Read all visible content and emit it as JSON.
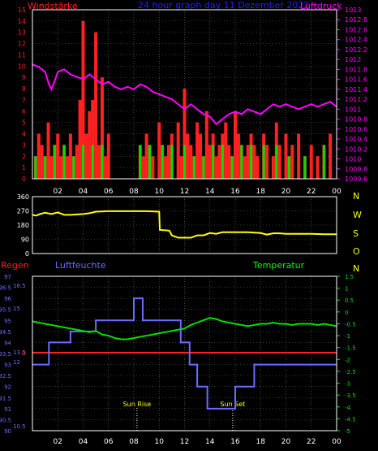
{
  "title": "24 hour graph day  11 Dezember 2022",
  "colors": {
    "red": "#ff2020",
    "green": "#00e000",
    "magenta": "#ff00ff",
    "yellow": "#ffff00",
    "blue": "#6c6cff",
    "grid": "#707070",
    "axis": "#ffffff",
    "title": "#2020ff",
    "temp_label": "#00ff00"
  },
  "x_ticks": [
    "02",
    "04",
    "06",
    "08",
    "10",
    "12",
    "14",
    "16",
    "18",
    "20",
    "22",
    "00"
  ],
  "wind_panel": {
    "left_label": "Windstärke",
    "right_label": "Luftdruck",
    "left_ticks": [
      "0",
      "1",
      "2",
      "3",
      "4",
      "5",
      "6",
      "7",
      "8",
      "9",
      "10",
      "11",
      "12",
      "13",
      "14",
      "15"
    ],
    "right_ticks": [
      "1009.6",
      "1009.8",
      "1010",
      "1010.2",
      "1010.4",
      "1010.6",
      "1010.8",
      "1011",
      "1011.2",
      "1011.4",
      "1011.6",
      "1011.8",
      "1012",
      "1012.2",
      "1012.4",
      "1012.6",
      "1012.8",
      "1013"
    ]
  },
  "direction_panel": {
    "left_ticks": [
      "0",
      "90",
      "180",
      "270",
      "360"
    ],
    "compass": [
      "N",
      "W",
      "S",
      "O",
      "N"
    ]
  },
  "climate_panel": {
    "label_rain": "Regen",
    "label_humidity": "Luftfeuchte",
    "label_temp": "Temperatur",
    "rain_ticks": [
      "0"
    ],
    "humidity_ticks": [
      "90",
      "90.5",
      "91",
      "91.5",
      "92",
      "92.5",
      "93",
      "93.5",
      "94",
      "94.5",
      "95",
      "95.5",
      "96",
      "96.5",
      "97"
    ],
    "rain_scale_ticks": [
      "10.5",
      "12",
      "13.5",
      "15",
      "16.5"
    ],
    "temp_ticks": [
      "-5",
      "-4.5",
      "-4",
      "-3.5",
      "-3",
      "-2.5",
      "-2",
      "-1.5",
      "-1",
      "-0.5",
      "0",
      "0.5",
      "1",
      "1.5"
    ],
    "sun_rise_label": "Sun Rise",
    "sun_set_label": "Sun Set"
  },
  "chart_data": [
    {
      "type": "line",
      "title": "24 hour graph day  11 Dezember 2022",
      "x_unit": "hour",
      "xlim": [
        0,
        24
      ],
      "series": [
        {
          "name": "Luftdruck",
          "color": "#ff00ff",
          "axis": "right",
          "ylim": [
            1009.6,
            1013.0
          ],
          "x": [
            0,
            0.5,
            1.0,
            1.3,
            1.5,
            1.8,
            2.0,
            2.5,
            3.0,
            3.5,
            4.0,
            4.5,
            5.0,
            5.5,
            6.0,
            6.5,
            7.0,
            7.5,
            8.0,
            8.5,
            9.0,
            9.5,
            10.0,
            10.5,
            11.0,
            11.5,
            12.0,
            12.5,
            13.0,
            13.5,
            14.0,
            14.5,
            15.0,
            15.5,
            16.0,
            16.5,
            17.0,
            17.5,
            18.0,
            18.5,
            19.0,
            19.5,
            20.0,
            20.5,
            21.0,
            21.5,
            22.0,
            22.5,
            23.0,
            23.5,
            24.0
          ],
          "values": [
            1011.9,
            1011.85,
            1011.75,
            1011.5,
            1011.4,
            1011.6,
            1011.75,
            1011.8,
            1011.7,
            1011.65,
            1011.6,
            1011.7,
            1011.6,
            1011.5,
            1011.55,
            1011.45,
            1011.4,
            1011.45,
            1011.4,
            1011.5,
            1011.45,
            1011.35,
            1011.3,
            1011.25,
            1011.2,
            1011.1,
            1011.0,
            1011.1,
            1011.0,
            1010.9,
            1010.85,
            1010.7,
            1010.8,
            1010.9,
            1010.95,
            1010.9,
            1011.0,
            1010.95,
            1010.9,
            1011.0,
            1011.1,
            1011.05,
            1011.1,
            1011.05,
            1011.0,
            1011.05,
            1011.1,
            1011.05,
            1011.1,
            1011.15,
            1011.05
          ]
        },
        {
          "name": "Windstärke",
          "type": "bar",
          "axis": "left",
          "ylim": [
            0,
            15
          ],
          "description_of_colors": "",
          "x": [
            0.25,
            0.5,
            0.75,
            1.0,
            1.25,
            1.5,
            1.75,
            2.0,
            2.25,
            2.5,
            2.75,
            3.0,
            3.25,
            3.5,
            3.75,
            4.0,
            4.25,
            4.5,
            4.75,
            5.0,
            5.25,
            5.5,
            5.75,
            6.0,
            8.5,
            8.75,
            9.0,
            9.25,
            9.5,
            10.0,
            10.25,
            10.5,
            10.75,
            11.0,
            11.5,
            11.75,
            12.0,
            12.25,
            12.5,
            12.75,
            13.0,
            13.25,
            13.5,
            13.75,
            14.0,
            14.25,
            14.5,
            14.75,
            15.0,
            15.25,
            15.5,
            15.75,
            16.0,
            16.25,
            16.5,
            16.75,
            17.0,
            17.25,
            17.5,
            17.75,
            18.25,
            18.5,
            19.0,
            19.25,
            19.5,
            20.0,
            20.25,
            20.5,
            21.0,
            21.5,
            22.0,
            22.5,
            23.0,
            23.5
          ],
          "values": [
            2,
            4,
            3,
            2,
            5,
            2,
            3,
            4,
            2,
            3,
            2,
            4,
            2,
            3,
            7,
            14,
            4,
            6,
            7,
            13,
            3,
            9,
            2,
            4,
            3,
            2,
            4,
            3,
            2,
            5,
            3,
            2,
            3,
            4,
            5,
            2,
            8,
            4,
            3,
            2,
            5,
            4,
            2,
            6,
            3,
            4,
            2,
            3,
            4,
            5,
            3,
            2,
            6,
            4,
            3,
            2,
            3,
            4,
            3,
            2,
            4,
            3,
            2,
            5,
            3,
            4,
            2,
            3,
            4,
            2,
            3,
            2,
            3,
            4
          ]
        }
      ]
    },
    {
      "type": "line",
      "x_unit": "hour",
      "xlim": [
        0,
        24
      ],
      "ylim": [
        0,
        360
      ],
      "series": [
        {
          "color": "#ffff00",
          "x": [
            0,
            0.3,
            0.6,
            1.0,
            1.5,
            2.0,
            2.5,
            3.0,
            4.0,
            4.5,
            5.0,
            6.0,
            7.0,
            8.0,
            9.0,
            10.0,
            10.05,
            10.8,
            11.0,
            11.5,
            12.0,
            12.5,
            13.0,
            13.5,
            14.0,
            14.5,
            15.0,
            16.0,
            17.0,
            18.0,
            18.5,
            19.0,
            19.5,
            20.0,
            20.5,
            21.0,
            22.0,
            23.0,
            24.0
          ],
          "values": [
            245,
            240,
            250,
            258,
            250,
            260,
            245,
            245,
            250,
            255,
            265,
            268,
            268,
            268,
            268,
            265,
            150,
            145,
            115,
            100,
            100,
            100,
            115,
            115,
            130,
            125,
            135,
            135,
            135,
            130,
            120,
            128,
            128,
            125,
            125,
            125,
            125,
            122,
            122
          ]
        }
      ]
    },
    {
      "type": "line",
      "x_unit": "hour",
      "xlim": [
        0,
        24
      ],
      "series": [
        {
          "name": "Luftfeuchte",
          "color": "#6c6cff",
          "axis": "left",
          "ylim": [
            90,
            97
          ],
          "x": [
            0,
            1.3,
            1.3,
            3.0,
            3.0,
            5.0,
            5.0,
            8.0,
            8.0,
            8.7,
            8.7,
            11.7,
            11.7,
            12.4,
            12.4,
            13.0,
            13.0,
            13.8,
            13.8,
            16.0,
            16.0,
            17.5,
            17.5,
            24.0
          ],
          "values": [
            93,
            93,
            94,
            94,
            94.5,
            94.5,
            95,
            95,
            96,
            96,
            95,
            95,
            94,
            94,
            93,
            93,
            92,
            92,
            91,
            91,
            92,
            92,
            93,
            93
          ]
        },
        {
          "name": "Temperatur",
          "color": "#00e000",
          "axis": "right",
          "ylim": [
            -5,
            1.5
          ],
          "x": [
            0,
            0.5,
            1.0,
            1.5,
            2.0,
            2.5,
            3.0,
            3.5,
            4.0,
            4.5,
            5.0,
            5.5,
            6.0,
            6.5,
            7.0,
            7.5,
            8.0,
            8.5,
            9.0,
            9.5,
            10.0,
            10.5,
            11.0,
            11.5,
            12.0,
            12.5,
            13.0,
            13.5,
            14.0,
            14.5,
            15.0,
            15.5,
            16.0,
            16.5,
            17.0,
            17.5,
            18.0,
            18.5,
            19.0,
            19.5,
            20.0,
            20.5,
            21.0,
            21.5,
            22.0,
            22.5,
            23.0,
            23.5,
            24.0
          ],
          "values": [
            -0.4,
            -0.45,
            -0.5,
            -0.55,
            -0.6,
            -0.65,
            -0.7,
            -0.75,
            -0.8,
            -0.85,
            -0.8,
            -0.95,
            -1.0,
            -1.1,
            -1.15,
            -1.15,
            -1.1,
            -1.05,
            -1.0,
            -0.95,
            -0.9,
            -0.85,
            -0.8,
            -0.75,
            -0.7,
            -0.55,
            -0.45,
            -0.35,
            -0.25,
            -0.3,
            -0.4,
            -0.45,
            -0.5,
            -0.55,
            -0.6,
            -0.55,
            -0.5,
            -0.5,
            -0.45,
            -0.5,
            -0.5,
            -0.55,
            -0.5,
            -0.5,
            -0.5,
            -0.55,
            -0.5,
            -0.55,
            -0.6
          ]
        },
        {
          "name": "Regen",
          "color": "#ff2020",
          "x": [
            0,
            24
          ],
          "values": [
            0,
            0
          ]
        }
      ],
      "annotations": [
        {
          "label": "Sun Rise",
          "x": 8.25
        },
        {
          "label": "Sun Set",
          "x": 15.8
        }
      ]
    }
  ]
}
